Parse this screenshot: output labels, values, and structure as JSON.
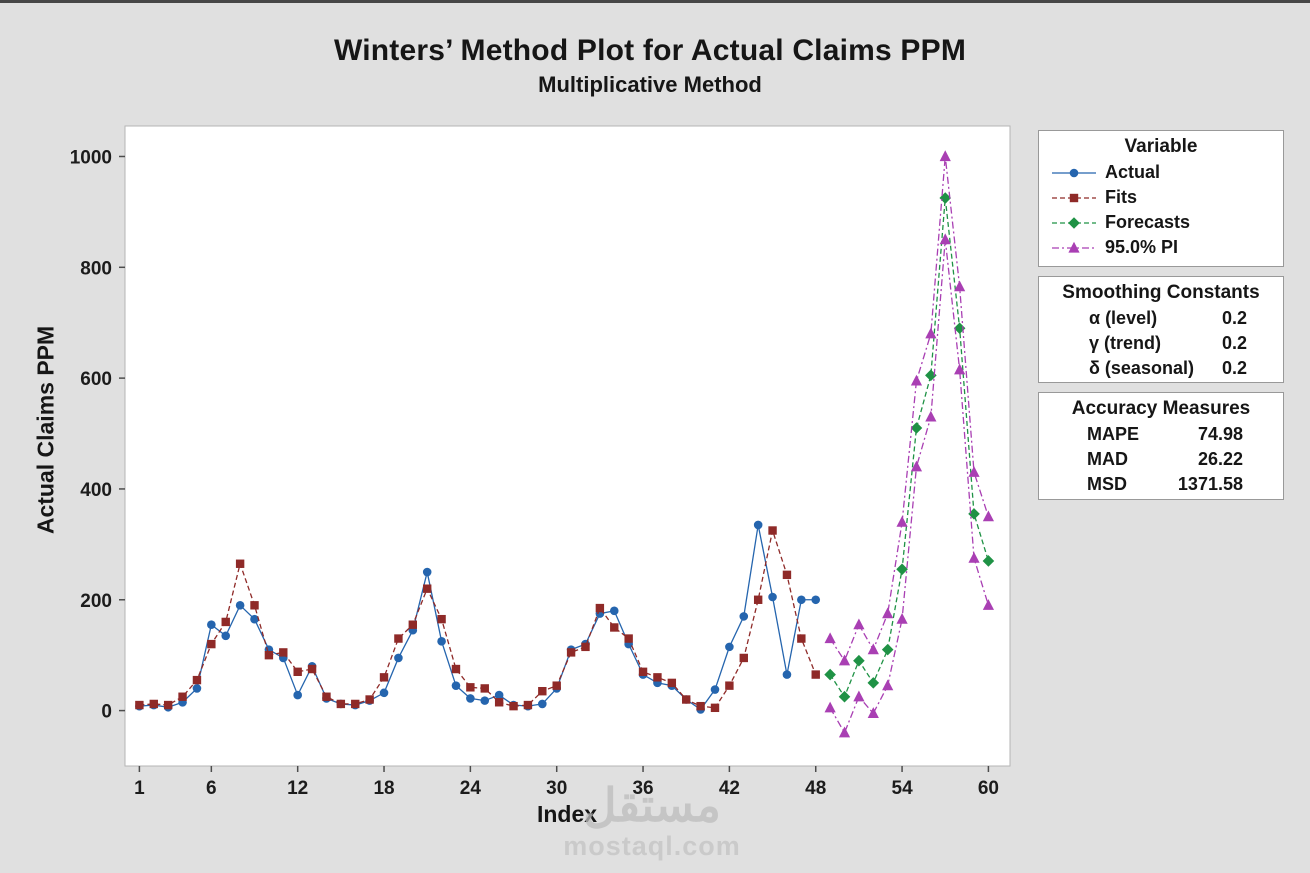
{
  "colors": {
    "background": "#e0e0e0",
    "plot_background": "#ffffff",
    "plot_border": "#b5b5b5",
    "actual": "#2565AE",
    "fits": "#8F2A28",
    "forecasts": "#1F9245",
    "pi": "#A93FB3"
  },
  "legend": {
    "header": "Variable"
  },
  "smoothing": {
    "header": "Smoothing Constants",
    "rows": [
      {
        "label": "α (level)",
        "value": "0.2"
      },
      {
        "label": "γ (trend)",
        "value": "0.2"
      },
      {
        "label": "δ (seasonal)",
        "value": "0.2"
      }
    ]
  },
  "accuracy": {
    "header": "Accuracy Measures",
    "rows": [
      {
        "label": "MAPE",
        "value": "74.98"
      },
      {
        "label": "MAD",
        "value": "26.22"
      },
      {
        "label": "MSD",
        "value": "1371.58"
      }
    ]
  },
  "watermark": {
    "arabic": "مستقل",
    "latin": "mostaql.com"
  },
  "chart_data": {
    "type": "line",
    "title": "Winters’ Method Plot for Actual Claims PPM",
    "subtitle": "Multiplicative Method",
    "xlabel": "Index",
    "ylabel": "Actual Claims PPM",
    "x_ticks": [
      1,
      6,
      12,
      18,
      24,
      30,
      36,
      42,
      48,
      54,
      60
    ],
    "y_ticks": [
      0,
      200,
      400,
      600,
      800,
      1000
    ],
    "xlim": [
      0,
      61.5
    ],
    "ylim": [
      -100,
      1055
    ],
    "grid": false,
    "legend_position": "right",
    "series": [
      {
        "name": "Actual",
        "color": "#2565AE",
        "marker": "circle",
        "dash": "solid",
        "x_start": 1,
        "values": [
          8,
          10,
          6,
          15,
          40,
          155,
          135,
          190,
          165,
          110,
          95,
          28,
          80,
          22,
          12,
          10,
          18,
          32,
          95,
          145,
          250,
          125,
          45,
          22,
          18,
          28,
          10,
          8,
          12,
          40,
          110,
          120,
          175,
          180,
          120,
          65,
          50,
          45,
          20,
          2,
          38,
          115,
          170,
          335,
          205,
          65,
          200,
          200
        ]
      },
      {
        "name": "Fits",
        "color": "#8F2A28",
        "marker": "square",
        "dash": "dashed",
        "x_start": 1,
        "values": [
          10,
          12,
          10,
          25,
          55,
          120,
          160,
          265,
          190,
          100,
          105,
          70,
          75,
          25,
          12,
          12,
          20,
          60,
          130,
          155,
          220,
          165,
          75,
          42,
          40,
          15,
          8,
          10,
          35,
          45,
          105,
          115,
          185,
          150,
          130,
          70,
          60,
          50,
          20,
          8,
          5,
          45,
          95,
          200,
          325,
          245,
          130,
          65
        ]
      },
      {
        "name": "Forecasts",
        "color": "#1F9245",
        "marker": "diamond",
        "dash": "dashed",
        "x_start": 49,
        "values": [
          65,
          25,
          90,
          50,
          110,
          255,
          510,
          605,
          925,
          690,
          355,
          270
        ]
      },
      {
        "name": "95.0% PI",
        "color": "#A93FB3",
        "marker": "triangle",
        "dash": "dashdot",
        "x_start": 49,
        "values_upper": [
          130,
          90,
          155,
          110,
          175,
          340,
          595,
          680,
          1000,
          765,
          430,
          350
        ],
        "values_lower": [
          5,
          -40,
          25,
          -5,
          45,
          165,
          440,
          530,
          850,
          615,
          275,
          190
        ]
      }
    ]
  }
}
